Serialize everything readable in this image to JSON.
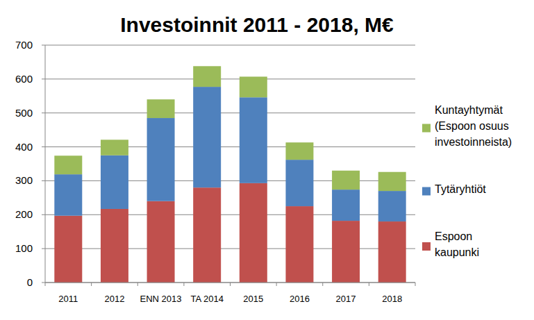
{
  "chart_data": {
    "type": "bar",
    "title": "Investoinnit 2011 - 2018, M€",
    "categories": [
      "2011",
      "2012",
      "ENN 2013",
      "TA 2014",
      "2015",
      "2016",
      "2017",
      "2018"
    ],
    "series": [
      {
        "name": "Espoon kaupunki",
        "color": "#c0504d",
        "values": [
          197,
          217,
          240,
          280,
          293,
          225,
          182,
          180
        ]
      },
      {
        "name": "Tytäryhtiöt",
        "color": "#4f81bd",
        "values": [
          122,
          158,
          245,
          297,
          253,
          137,
          92,
          90
        ]
      },
      {
        "name": "Kuntayhtymät (Espoon osuus investoinneista)",
        "color": "#9bbb59",
        "values": [
          55,
          46,
          55,
          61,
          61,
          51,
          56,
          56
        ]
      }
    ],
    "stacked": true,
    "ylim": [
      0,
      700
    ],
    "yticks": [
      0,
      100,
      200,
      300,
      400,
      500,
      600,
      700
    ],
    "grid": true,
    "legend": "right"
  }
}
